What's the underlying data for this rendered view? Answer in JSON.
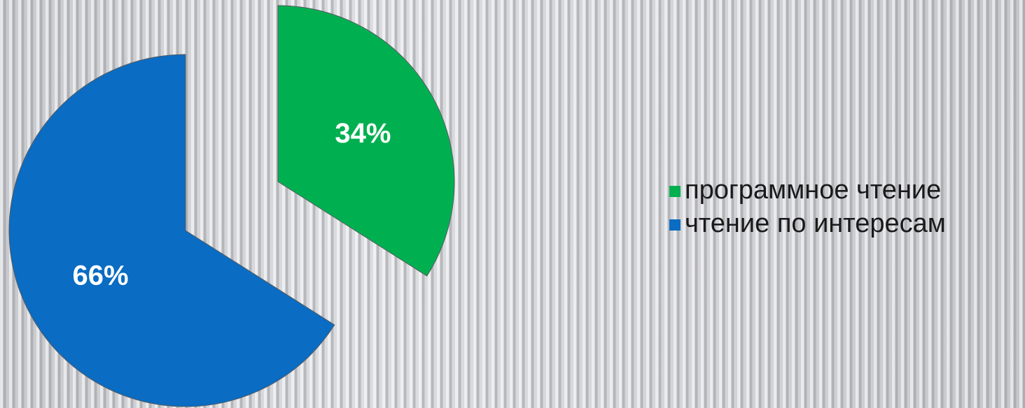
{
  "chart_data": {
    "type": "pie",
    "categories": [
      "программное чтение",
      "чтение по интересам"
    ],
    "values": [
      34,
      66
    ],
    "data_labels": [
      "34%",
      "66%"
    ],
    "colors": [
      "#00b050",
      "#0a6cc2"
    ],
    "exploded": true,
    "legend_position": "right",
    "title": ""
  }
}
